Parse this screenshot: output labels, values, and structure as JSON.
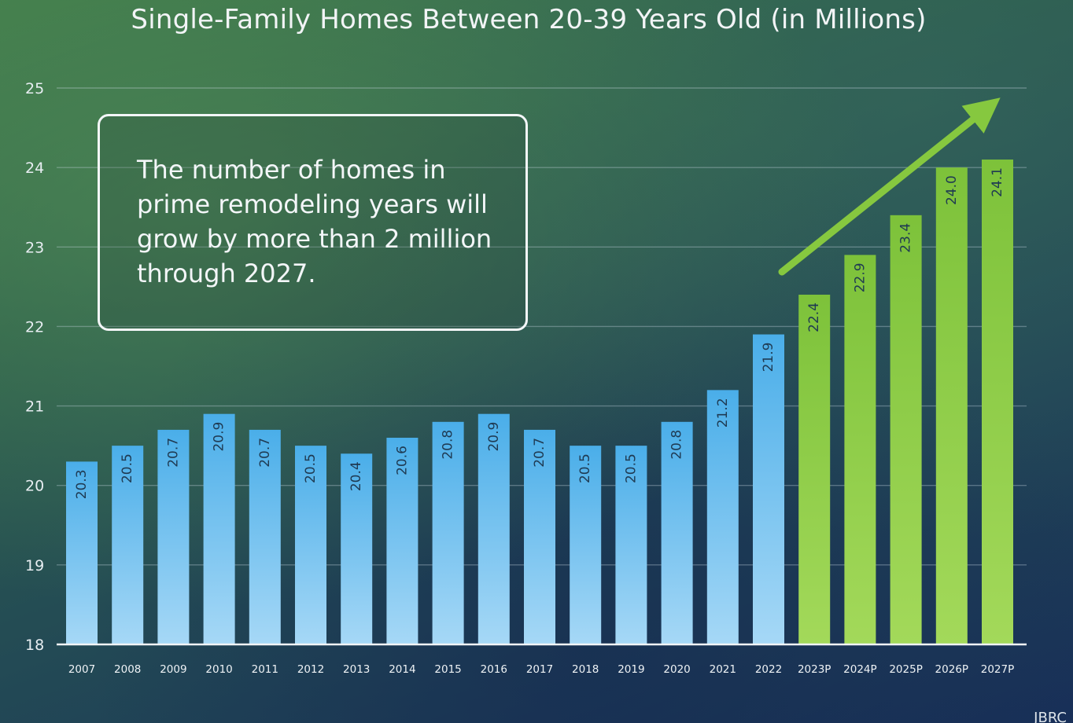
{
  "title": "Single-Family Homes Between 20-39 Years Old (in Millions)",
  "callout": "The number of homes in prime remodeling years will grow by more than 2 million through 2027.",
  "source": "JBRC",
  "colors": {
    "historical_bar": "#4fb1ea",
    "projected_bar": "#86c83f",
    "arrow": "#86c83f",
    "label_text": "#1f3a52"
  },
  "chart_data": {
    "type": "bar",
    "title": "Single-Family Homes Between 20-39 Years Old (in Millions)",
    "xlabel": "",
    "ylabel": "",
    "ylim": [
      18,
      25
    ],
    "yticks": [
      18,
      19,
      20,
      21,
      22,
      23,
      24,
      25
    ],
    "grid": true,
    "categories": [
      "2007",
      "2008",
      "2009",
      "2010",
      "2011",
      "2012",
      "2013",
      "2014",
      "2015",
      "2016",
      "2017",
      "2018",
      "2019",
      "2020",
      "2021",
      "2022",
      "2023P",
      "2024P",
      "2025P",
      "2026P",
      "2027P"
    ],
    "values": [
      20.3,
      20.5,
      20.7,
      20.9,
      20.7,
      20.5,
      20.4,
      20.6,
      20.8,
      20.9,
      20.7,
      20.5,
      20.5,
      20.8,
      21.2,
      21.9,
      22.4,
      22.9,
      23.4,
      24.0,
      24.1
    ],
    "value_labels": [
      "20.3",
      "20.5",
      "20.7",
      "20.9",
      "20.7",
      "20.5",
      "20.4",
      "20.6",
      "20.8",
      "20.9",
      "20.7",
      "20.5",
      "20.5",
      "20.8",
      "21.2",
      "21.9",
      "22.4",
      "22.9",
      "23.4",
      "24.0",
      "24.1"
    ],
    "projected": [
      false,
      false,
      false,
      false,
      false,
      false,
      false,
      false,
      false,
      false,
      false,
      false,
      false,
      false,
      false,
      false,
      true,
      true,
      true,
      true,
      true
    ]
  }
}
